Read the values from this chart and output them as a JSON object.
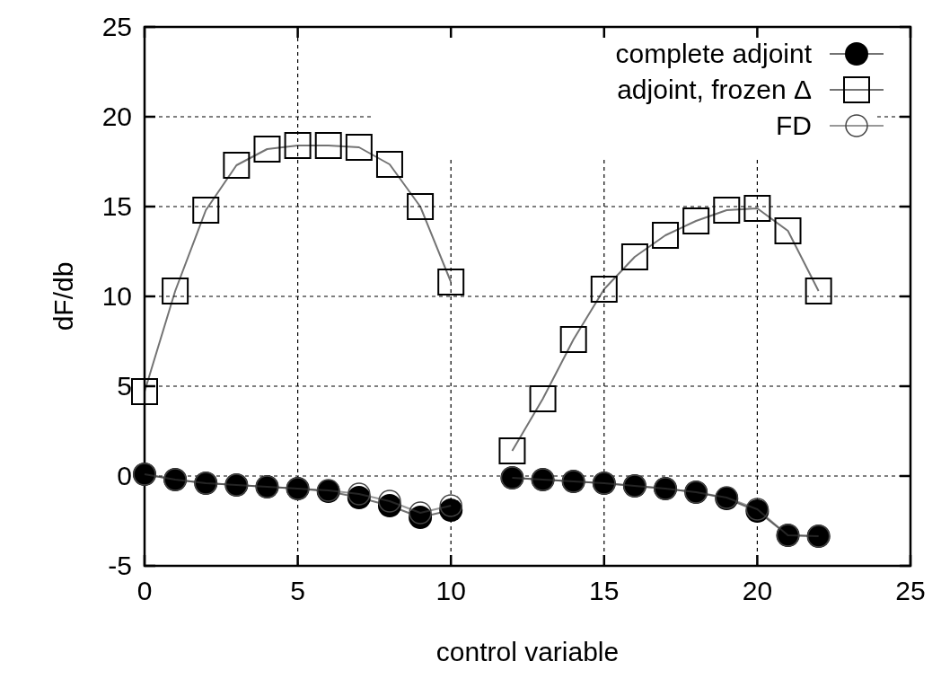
{
  "chart_data": {
    "type": "line",
    "xlabel": "control variable",
    "ylabel": "dF/db",
    "x": [
      0,
      1,
      2,
      3,
      4,
      5,
      6,
      7,
      8,
      9,
      10,
      11,
      12,
      13,
      14,
      15,
      16,
      17,
      18,
      19,
      20,
      21,
      22
    ],
    "series": [
      {
        "name": "complete adjoint",
        "color": "#000000",
        "marker": "circle",
        "values": [
          0.1,
          -0.2,
          -0.4,
          -0.5,
          -0.6,
          -0.7,
          -0.85,
          -1.2,
          -1.65,
          -2.3,
          -1.9,
          null,
          -0.1,
          -0.2,
          -0.3,
          -0.4,
          -0.55,
          -0.7,
          -0.9,
          -1.25,
          -1.95,
          -3.3,
          -3.35
        ]
      },
      {
        "name": "adjoint, frozen Δ",
        "color": "#000000",
        "marker": "square",
        "values": [
          4.7,
          10.3,
          14.8,
          17.3,
          18.2,
          18.4,
          18.4,
          18.3,
          17.35,
          15.0,
          10.8,
          null,
          1.4,
          4.3,
          7.6,
          10.4,
          12.2,
          13.4,
          14.2,
          14.8,
          14.9,
          13.65,
          10.3
        ]
      },
      {
        "name": "FD",
        "color": "#444444",
        "marker": "circle_open",
        "values": [
          0.1,
          -0.2,
          -0.4,
          -0.5,
          -0.6,
          -0.7,
          -0.8,
          -1.0,
          -1.4,
          -2.05,
          -1.65,
          null,
          -0.1,
          -0.2,
          -0.3,
          -0.4,
          -0.55,
          -0.7,
          -0.9,
          -1.2,
          -1.85,
          -3.3,
          -3.35
        ]
      }
    ],
    "xlim": [
      0,
      25
    ],
    "ylim": [
      -5,
      25
    ],
    "xticks": [
      0,
      5,
      10,
      15,
      20,
      25
    ],
    "yticks": [
      -5,
      0,
      5,
      10,
      15,
      20,
      25
    ],
    "grid": true,
    "legend": "top right",
    "line_style": "solid"
  }
}
